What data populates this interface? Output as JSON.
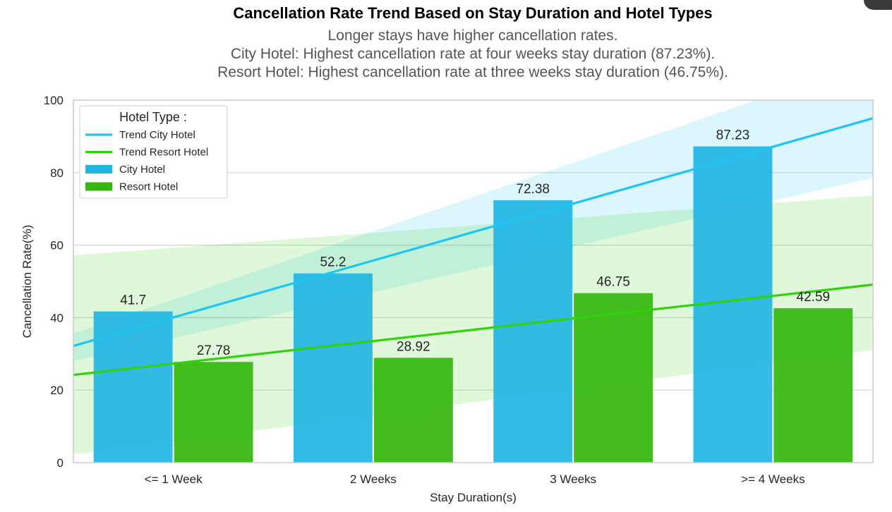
{
  "chart_data": {
    "type": "bar",
    "title": "Cancellation Rate Trend Based on Stay Duration and Hotel Types",
    "subtitle": [
      "Longer stays have higher cancellation rates.",
      "City Hotel: Highest cancellation rate at four weeks stay duration (87.23%).",
      "Resort Hotel: Highest cancellation rate at three weeks stay duration (46.75%)."
    ],
    "xlabel": "Stay Duration(s)",
    "ylabel": "Cancellation Rate(%)",
    "ylim": [
      0,
      100
    ],
    "yticks": [
      0,
      20,
      40,
      60,
      80,
      100
    ],
    "categories": [
      "<= 1 Week",
      "2 Weeks",
      "3 Weeks",
      ">= 4 Weeks"
    ],
    "series": [
      {
        "name": "City Hotel",
        "color": "#22b5e4",
        "values": [
          41.7,
          52.2,
          72.38,
          87.23
        ],
        "labels": [
          "41.7",
          "52.2",
          "72.38",
          "87.23"
        ]
      },
      {
        "name": "Resort Hotel",
        "color": "#35b80f",
        "values": [
          27.78,
          28.92,
          46.75,
          42.59
        ],
        "labels": [
          "27.78",
          "28.92",
          "46.75",
          "42.59"
        ]
      }
    ],
    "trend_lines": [
      {
        "name": "Trend City Hotel",
        "color": "#1ec5f2",
        "start": 32.2,
        "end": 95.0,
        "band_start": [
          28.0,
          35.6
        ],
        "band_end": [
          78.6,
          111.0
        ]
      },
      {
        "name": "Trend Resort Hotel",
        "color": "#30d20a",
        "start": 24.2,
        "end": 49.1,
        "band_start": [
          2.3,
          57.2
        ],
        "band_end": [
          31.0,
          73.7
        ]
      }
    ],
    "legend": {
      "title": "Hotel Type :",
      "position": "top-left",
      "entries": [
        "Trend City Hotel",
        "Trend Resort Hotel",
        "City Hotel",
        "Resort Hotel"
      ]
    },
    "grid": true
  }
}
